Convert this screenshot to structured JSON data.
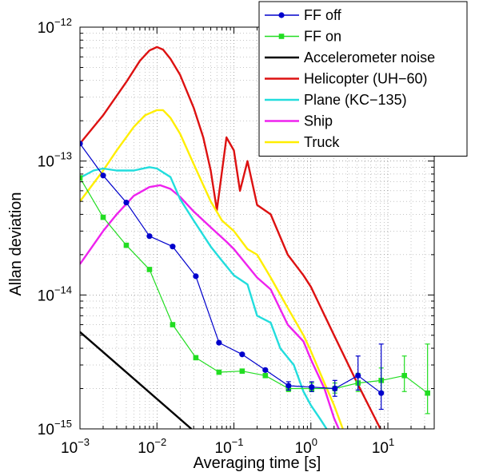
{
  "chart_data": {
    "type": "line",
    "xlabel": "Averaging time [s]",
    "ylabel": "Allan deviation",
    "x_scale": "log",
    "y_scale": "log",
    "xlim": [
      0.001,
      40
    ],
    "ylim": [
      1e-15,
      1e-12
    ],
    "grid": true,
    "legend_position": "top-right",
    "x_ticks": [
      {
        "base": "10",
        "exp": "−3",
        "value": 0.001
      },
      {
        "base": "10",
        "exp": "−2",
        "value": 0.01
      },
      {
        "base": "10",
        "exp": "−1",
        "value": 0.1
      },
      {
        "base": "10",
        "exp": "0",
        "value": 1
      },
      {
        "base": "10",
        "exp": "1",
        "value": 10
      }
    ],
    "y_ticks": [
      {
        "base": "10",
        "exp": "−15",
        "value": 1e-15
      },
      {
        "base": "10",
        "exp": "−14",
        "value": 1e-14
      },
      {
        "base": "10",
        "exp": "−13",
        "value": 1e-13
      },
      {
        "base": "10",
        "exp": "−12",
        "value": 1e-12
      }
    ],
    "series": [
      {
        "name": "FF off",
        "color": "#0000cc",
        "marker": "circle",
        "x": [
          0.001,
          0.002,
          0.004,
          0.008,
          0.016,
          0.032,
          0.064,
          0.128,
          0.256,
          0.512,
          1.024,
          2.048,
          4.096,
          8.192
        ],
        "y": [
          1.35e-13,
          7.8e-14,
          4.9e-14,
          2.75e-14,
          2.3e-14,
          1.38e-14,
          4.4e-15,
          3.6e-15,
          2.75e-15,
          2.1e-15,
          2.05e-15,
          2e-15,
          2.5e-15,
          1.85e-15
        ],
        "err_low": [
          null,
          null,
          null,
          null,
          null,
          null,
          null,
          null,
          null,
          1.95e-15,
          1.9e-15,
          1.75e-15,
          1.95e-15,
          1.4e-15
        ],
        "err_high": [
          null,
          null,
          null,
          null,
          null,
          null,
          null,
          null,
          null,
          2.25e-15,
          2.25e-15,
          2.3e-15,
          3.5e-15,
          4.3e-15
        ]
      },
      {
        "name": "FF on",
        "color": "#22dd22",
        "marker": "square",
        "x": [
          0.001,
          0.002,
          0.004,
          0.008,
          0.016,
          0.032,
          0.064,
          0.128,
          0.256,
          0.512,
          1.024,
          2.048,
          4.096,
          8.192,
          16.384,
          32.768
        ],
        "y": [
          7.5e-14,
          3.8e-14,
          2.35e-14,
          1.55e-14,
          6e-15,
          3.4e-15,
          2.65e-15,
          2.7e-15,
          2.5e-15,
          2e-15,
          2e-15,
          2e-15,
          2.2e-15,
          2.3e-15,
          2.5e-15,
          1.85e-15
        ],
        "err_low": [
          null,
          null,
          null,
          null,
          null,
          null,
          null,
          null,
          null,
          1.9e-15,
          1.9e-15,
          1.85e-15,
          1.9e-15,
          1.9e-15,
          1.9e-15,
          1.3e-15
        ],
        "err_high": [
          null,
          null,
          null,
          null,
          null,
          null,
          null,
          null,
          null,
          2.15e-15,
          2.2e-15,
          2.2e-15,
          2.6e-15,
          2.85e-15,
          3.5e-15,
          4.3e-15
        ]
      },
      {
        "name": "Accelerometer noise",
        "color": "#000000",
        "x": [
          0.001,
          0.028
        ],
        "y": [
          5.3e-15,
          1e-15
        ]
      },
      {
        "name": "Helicopter (UH−60)",
        "color": "#dd1111",
        "x": [
          0.001,
          0.002,
          0.004,
          0.006,
          0.008,
          0.01,
          0.012,
          0.015,
          0.02,
          0.03,
          0.04,
          0.05,
          0.06,
          0.08,
          0.1,
          0.12,
          0.15,
          0.2,
          0.3,
          0.5,
          0.8,
          1,
          2,
          4,
          8
        ],
        "y": [
          1.35e-13,
          2.2e-13,
          3.9e-13,
          5.6e-13,
          6.7e-13,
          7.1e-13,
          6.8e-13,
          5.8e-13,
          4.4e-13,
          2.5e-13,
          1.5e-13,
          8.5e-14,
          4.3e-14,
          1.5e-13,
          1.2e-13,
          6e-14,
          1e-13,
          4.7e-14,
          4e-14,
          2e-14,
          1.4e-14,
          1.15e-14,
          5e-15,
          2.2e-15,
          1e-15
        ]
      },
      {
        "name": "Plane (KC−135)",
        "color": "#22dddd",
        "x": [
          0.001,
          0.0015,
          0.002,
          0.003,
          0.005,
          0.008,
          0.01,
          0.015,
          0.02,
          0.03,
          0.05,
          0.07,
          0.1,
          0.15,
          0.2,
          0.3,
          0.4,
          0.6,
          0.8,
          1.0,
          1.3,
          1.6
        ],
        "y": [
          7.5e-14,
          8.5e-14,
          8.8e-14,
          8.5e-14,
          8.5e-14,
          9e-14,
          8.8e-14,
          7.6e-14,
          5.2e-14,
          3.6e-14,
          2.3e-14,
          1.8e-14,
          1.4e-14,
          1.2e-14,
          7e-15,
          6.2e-15,
          4e-15,
          3e-15,
          1.9e-15,
          1.5e-15,
          1.2e-15,
          1e-15
        ]
      },
      {
        "name": "Ship",
        "color": "#ee22ee",
        "x": [
          0.001,
          0.002,
          0.003,
          0.005,
          0.008,
          0.011,
          0.015,
          0.02,
          0.03,
          0.05,
          0.08,
          0.1,
          0.2,
          0.3,
          0.5,
          0.8,
          1.0,
          1.5,
          2.0,
          2.3
        ],
        "y": [
          1.7e-14,
          3e-14,
          4e-14,
          5.5e-14,
          6.4e-14,
          6.6e-14,
          6.2e-14,
          5.4e-14,
          4.2e-14,
          3.2e-14,
          2.5e-14,
          2.2e-14,
          1.35e-14,
          1.1e-14,
          6e-15,
          4.5e-15,
          3.3e-15,
          2e-15,
          1.2e-15,
          1e-15
        ]
      },
      {
        "name": "Truck",
        "color": "#ffee00",
        "x": [
          0.001,
          0.002,
          0.003,
          0.005,
          0.007,
          0.01,
          0.012,
          0.015,
          0.02,
          0.03,
          0.05,
          0.07,
          0.1,
          0.15,
          0.2,
          0.3,
          0.5,
          0.8,
          1.0,
          1.5,
          2.0,
          2.6
        ],
        "y": [
          5e-14,
          8.5e-14,
          1.2e-13,
          1.8e-13,
          2.2e-13,
          2.4e-13,
          2.4e-13,
          2.1e-13,
          1.6e-13,
          9.5e-14,
          5e-14,
          3.6e-14,
          3e-14,
          2.2e-14,
          2e-14,
          1.35e-14,
          8e-15,
          5e-15,
          3.8e-15,
          2.2e-15,
          1.5e-15,
          1e-15
        ]
      }
    ]
  }
}
